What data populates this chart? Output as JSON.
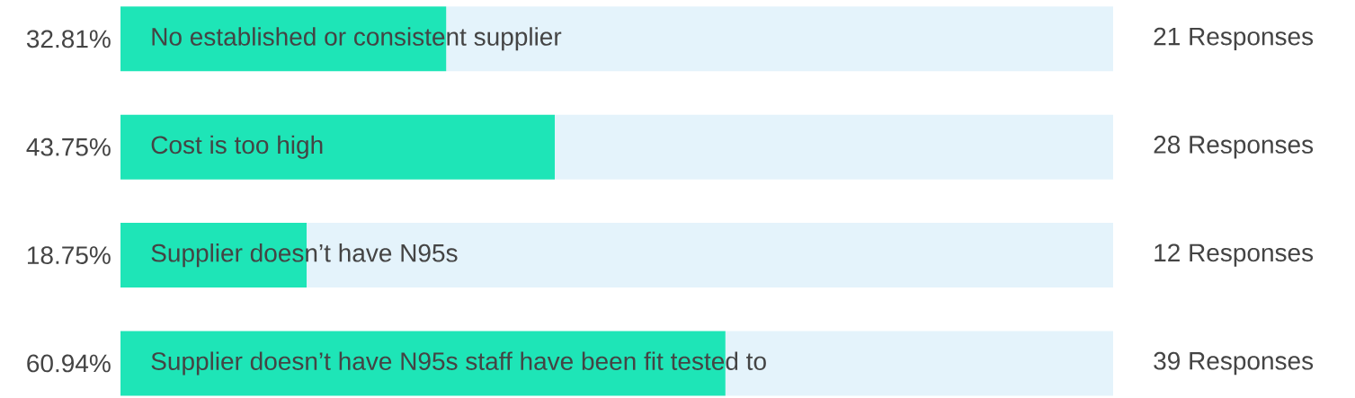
{
  "chart_data": {
    "type": "bar",
    "orientation": "horizontal",
    "stacked": true,
    "xlim": [
      0,
      100
    ],
    "categories": [
      "No established or consistent supplier",
      "Cost is too high",
      "Supplier doesn’t have N95s",
      "Supplier doesn’t have N95s staff have been fit tested to"
    ],
    "series": [
      {
        "color": "#1ee5b7",
        "values": [
          32.81,
          43.75,
          18.75,
          60.94
        ],
        "value_labels": [
          "32.81%",
          "43.75%",
          "18.75%",
          "60.94%"
        ]
      },
      {
        "color": "#e4f3fb",
        "values": [
          67.19,
          56.25,
          81.25,
          39.06
        ]
      }
    ],
    "annotations": [
      "21 Responses",
      "28 Responses",
      "12 Responses",
      "39 Responses"
    ]
  }
}
